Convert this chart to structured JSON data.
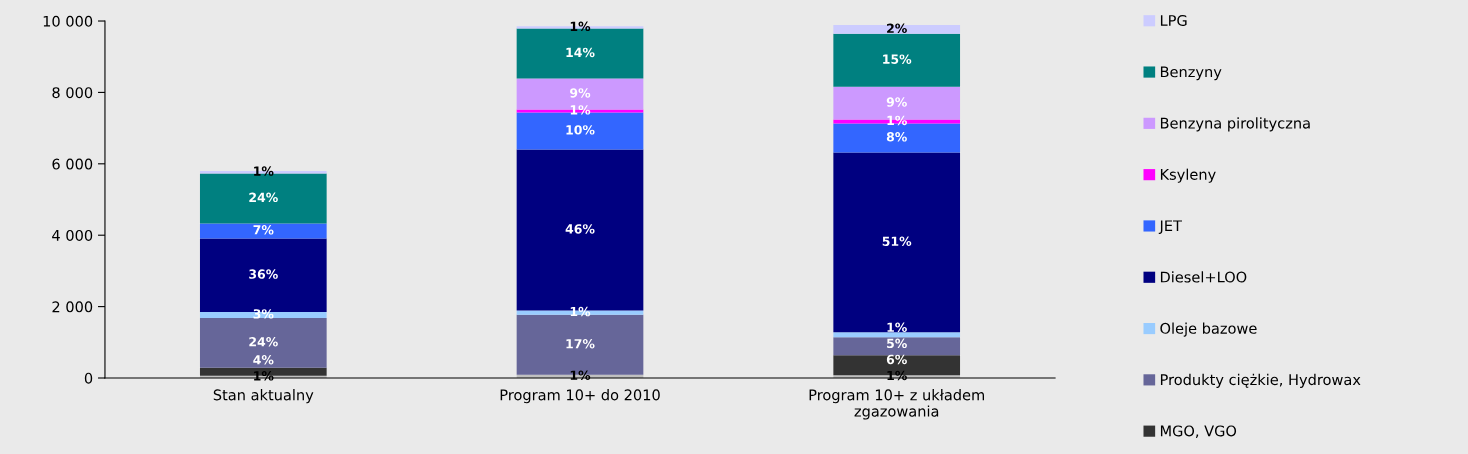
{
  "chart_data": {
    "type": "bar",
    "stacked": true,
    "legend": "right",
    "grid": false,
    "categories": [
      "Stan aktualny",
      "Program 10+ do 2010",
      "Program 10+ z układem\nzgazowania"
    ],
    "ylim": [
      0,
      10000
    ],
    "yticks": [
      {
        "value": 0,
        "label": "0"
      },
      {
        "value": 2000,
        "label": "2 000"
      },
      {
        "value": 4000,
        "label": "4 000"
      },
      {
        "value": 6000,
        "label": "6 000"
      },
      {
        "value": 8000,
        "label": "8 000"
      },
      {
        "value": 10000,
        "label": "10 000"
      }
    ],
    "series": [
      {
        "color": "#c0c0c0",
        "values": [
          60,
          90,
          80
        ]
      },
      {
        "name": "MGO, VGO",
        "color": "#333333",
        "values": [
          230,
          null,
          560
        ]
      },
      {
        "name": "Produkty ciężkie, Hydrowax",
        "color": "#666699",
        "values": [
          1390,
          1680,
          500
        ]
      },
      {
        "name": "Oleje bazowe",
        "color": "#99ccff",
        "values": [
          170,
          120,
          140
        ]
      },
      {
        "name": "Diesel+LOO",
        "color": "#000080",
        "values": [
          2060,
          4510,
          5040
        ]
      },
      {
        "name": "JET",
        "color": "#3366ff",
        "values": [
          420,
          1040,
          810
        ]
      },
      {
        "name": "Ksyleny",
        "color": "#ff00ff",
        "values": [
          null,
          80,
          110
        ]
      },
      {
        "name": "Benzyna pirolityczna",
        "color": "#cc99ff",
        "values": [
          null,
          870,
          920
        ]
      },
      {
        "name": "Benzyny",
        "color": "#008080",
        "values": [
          1400,
          1400,
          1480
        ]
      },
      {
        "name": "LPG",
        "color": "#ccccff",
        "values": [
          70,
          60,
          250
        ]
      }
    ],
    "annotations": [
      "1%",
      "4%",
      "24%",
      "3%",
      "36%",
      "7%",
      "24%",
      "1%",
      "1%",
      "17%",
      "1%",
      "46%",
      "10%",
      "1%",
      "9%",
      "14%",
      "1%",
      "1%",
      "6%",
      "5%",
      "1%",
      "51%",
      "8%",
      "1%",
      "9%",
      "15%",
      "2%"
    ]
  }
}
